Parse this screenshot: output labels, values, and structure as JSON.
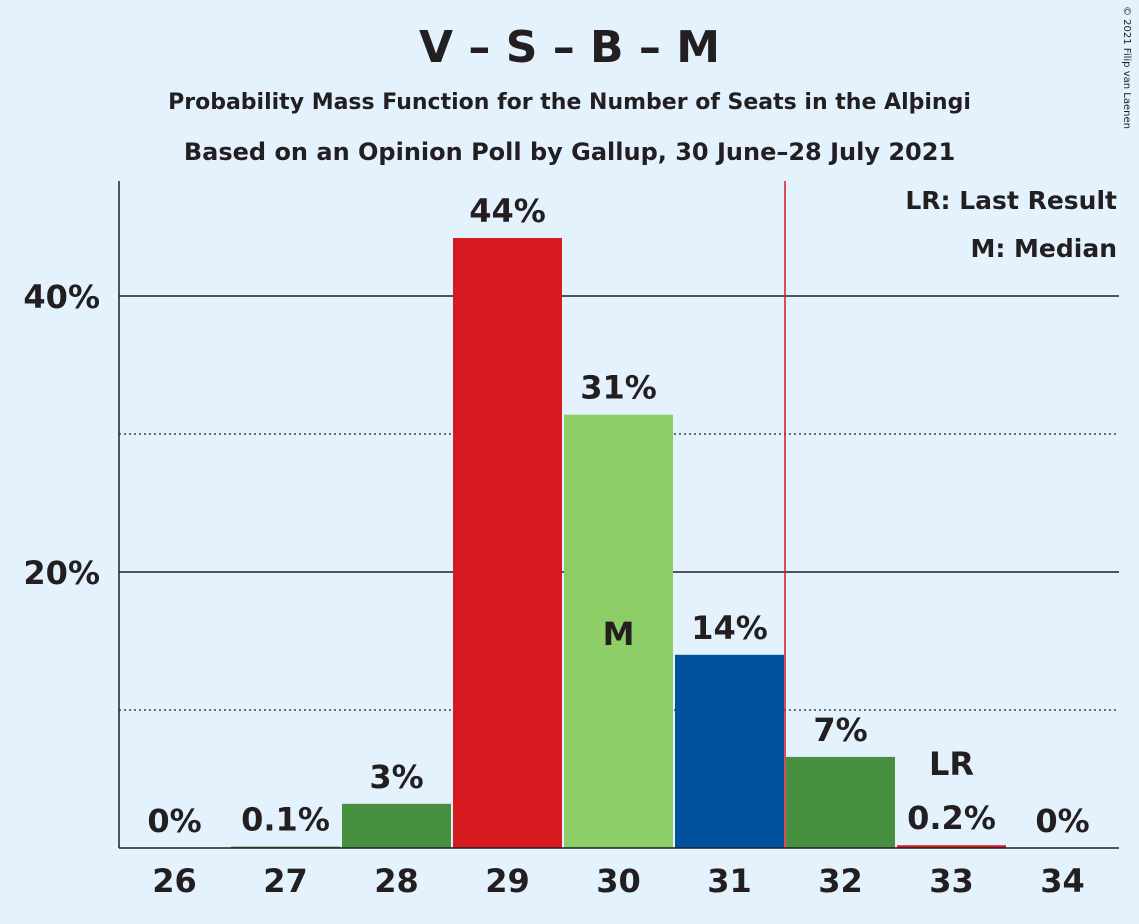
{
  "title": "V – S – B – M",
  "subtitle": "Probability Mass Function for the Number of Seats in the Alþingi",
  "subtitle2": "Based on an Opinion Poll by Gallup, 30 June–28 July 2021",
  "credit": "© 2021 Filip van Laenen",
  "legend": {
    "last_result": "LR: Last Result",
    "median": "M: Median"
  },
  "chart_data": {
    "type": "bar",
    "categories": [
      "26",
      "27",
      "28",
      "29",
      "30",
      "31",
      "32",
      "33",
      "34"
    ],
    "values": [
      0,
      0.1,
      3.2,
      44.2,
      31.4,
      14.0,
      6.6,
      0.2,
      0
    ],
    "data_labels": [
      "0%",
      "0.1%",
      "3%",
      "44%",
      "31%",
      "14%",
      "7%",
      "0.2%",
      "0%"
    ],
    "colors": [
      "#47903f",
      "#47903f",
      "#47903f",
      "#d71920",
      "#8dce67",
      "#00529c",
      "#47903f",
      "#d71920",
      "#47903f"
    ],
    "ylim": [
      0,
      48
    ],
    "y_ticks": [
      {
        "value": 20,
        "label": "20%"
      },
      {
        "value": 40,
        "label": "40%"
      }
    ],
    "minor_gridlines": [
      10,
      30
    ],
    "median_seats": "30",
    "median_marker": "M",
    "last_result_seats": "33",
    "last_result_marker": "LR",
    "majority_line_between": [
      "31",
      "32"
    ],
    "majority_line_color": "#d71920"
  }
}
